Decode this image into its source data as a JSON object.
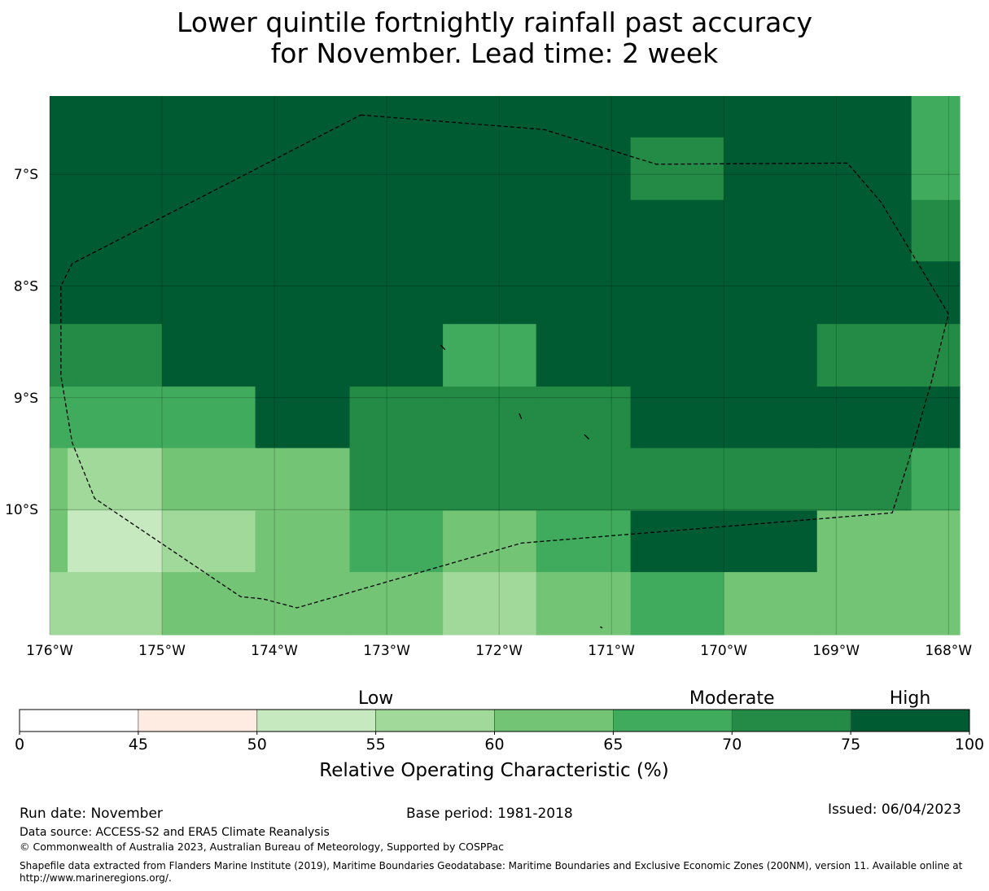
{
  "title": {
    "line1": "Lower quintile fortnightly rainfall past accuracy",
    "line2": "for November. Lead time: 2 week"
  },
  "map": {
    "lon_range": [
      -176,
      -167.9
    ],
    "lat_range": [
      -11.12,
      -6.3
    ],
    "lon_ticks": [
      {
        "value": -176,
        "label": "176°W"
      },
      {
        "value": -175,
        "label": "175°W"
      },
      {
        "value": -174,
        "label": "174°W"
      },
      {
        "value": -173,
        "label": "173°W"
      },
      {
        "value": -172,
        "label": "172°W"
      },
      {
        "value": -171,
        "label": "171°W"
      },
      {
        "value": -170,
        "label": "170°W"
      },
      {
        "value": -169,
        "label": "169°W"
      },
      {
        "value": -168,
        "label": "168°W"
      }
    ],
    "lat_ticks": [
      {
        "value": -7,
        "label": "7°S"
      },
      {
        "value": -8,
        "label": "8°S"
      },
      {
        "value": -9,
        "label": "9°S"
      },
      {
        "value": -10,
        "label": "10°S"
      }
    ],
    "grid_lon_edges": [
      -176,
      -175.84,
      -175.0,
      -174.17,
      -173.33,
      -172.5,
      -171.67,
      -170.83,
      -170.0,
      -169.17,
      -168.33,
      -167.9
    ],
    "grid_lat_edges": [
      -6.3,
      -6.67,
      -7.23,
      -7.78,
      -8.34,
      -8.9,
      -9.45,
      -10.01,
      -10.56,
      -11.12
    ],
    "grid_values": [
      [
        77,
        77,
        77,
        77,
        77,
        77,
        77,
        77,
        77,
        77,
        67
      ],
      [
        77,
        77,
        77,
        77,
        77,
        77,
        77,
        72,
        77,
        77,
        67
      ],
      [
        77,
        77,
        77,
        77,
        77,
        77,
        77,
        77,
        77,
        77,
        72
      ],
      [
        77,
        77,
        77,
        77,
        77,
        77,
        77,
        77,
        77,
        77,
        77
      ],
      [
        72,
        72,
        77,
        77,
        77,
        67,
        77,
        77,
        77,
        72,
        72
      ],
      [
        67,
        67,
        67,
        77,
        72,
        72,
        72,
        77,
        77,
        77,
        77
      ],
      [
        62,
        57,
        62,
        62,
        72,
        72,
        72,
        72,
        72,
        72,
        67
      ],
      [
        62,
        52,
        57,
        62,
        67,
        62,
        67,
        77,
        77,
        62,
        62
      ],
      [
        57,
        57,
        62,
        62,
        62,
        57,
        62,
        67,
        62,
        62,
        62
      ]
    ],
    "eez_boundary": [
      [
        -173.23,
        -6.47
      ],
      [
        -171.6,
        -6.6
      ],
      [
        -170.6,
        -6.91
      ],
      [
        -168.9,
        -6.9
      ],
      [
        -168.6,
        -7.25
      ],
      [
        -168.3,
        -7.75
      ],
      [
        -168.0,
        -8.25
      ],
      [
        -168.15,
        -8.85
      ],
      [
        -168.35,
        -9.55
      ],
      [
        -168.5,
        -10.03
      ],
      [
        -171.8,
        -10.3
      ],
      [
        -173.8,
        -10.88
      ],
      [
        -174.1,
        -10.8
      ],
      [
        -174.3,
        -10.78
      ],
      [
        -175.6,
        -9.9
      ],
      [
        -175.8,
        -9.4
      ],
      [
        -175.9,
        -8.8
      ],
      [
        -175.9,
        -8.0
      ],
      [
        -175.8,
        -7.8
      ]
    ],
    "islands": [
      [
        [
          -172.52,
          -8.53
        ],
        [
          -172.48,
          -8.57
        ]
      ],
      [
        [
          -171.82,
          -9.14
        ],
        [
          -171.8,
          -9.19
        ]
      ],
      [
        [
          -171.24,
          -9.33
        ],
        [
          -171.2,
          -9.37
        ]
      ],
      [
        [
          -171.1,
          -11.05
        ],
        [
          -171.08,
          -11.06
        ]
      ]
    ]
  },
  "colorbar": {
    "category_labels": [
      {
        "label": "Low",
        "value": 55
      },
      {
        "label": "Moderate",
        "value": 70
      },
      {
        "label": "High",
        "value": 87.5
      }
    ],
    "segments": [
      {
        "from": 0,
        "to": 45,
        "color": "#ffffff"
      },
      {
        "from": 45,
        "to": 50,
        "color": "#feebe2"
      },
      {
        "from": 50,
        "to": 55,
        "color": "#c7e9c0"
      },
      {
        "from": 55,
        "to": 60,
        "color": "#a1d99b"
      },
      {
        "from": 60,
        "to": 65,
        "color": "#74c476"
      },
      {
        "from": 65,
        "to": 70,
        "color": "#41ab5d"
      },
      {
        "from": 70,
        "to": 75,
        "color": "#238b45"
      },
      {
        "from": 75,
        "to": 100,
        "color": "#005a32"
      }
    ],
    "tick_labels": [
      "0",
      "45",
      "50",
      "55",
      "60",
      "65",
      "70",
      "75",
      "100"
    ],
    "label": "Relative Operating Characteristic (%)"
  },
  "footer": {
    "run_date": "Run date: November",
    "base_period": "Base period: 1981-2018",
    "issued": "Issued: 06/04/2023",
    "data_source": "Data source: ACCESS-S2 and ERA5 Climate Reanalysis",
    "copyright": "© Commonwealth of Australia 2023, Australian Bureau of Meteorology, Supported by COSPPac",
    "shapefile_line1": "Shapefile data extracted from Flanders Marine Institute (2019), Maritime Boundaries Geodatabase: Maritime Boundaries and Exclusive Economic Zones (200NM), version 11. Available online at",
    "shapefile_line2": "http://www.marineregions.org/."
  }
}
